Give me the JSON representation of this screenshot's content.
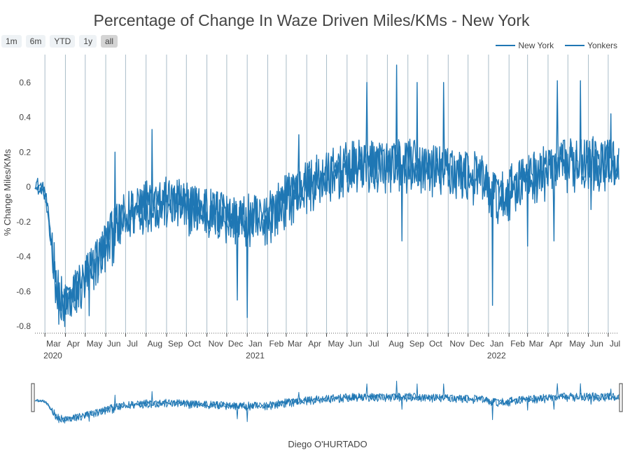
{
  "title": "Percentage of Change In Waze Driven Miles/KMs - New York",
  "range_buttons": [
    "1m",
    "6m",
    "YTD",
    "1y",
    "all"
  ],
  "active_range": "all",
  "footer": "Diego O'HURTADO",
  "chart_data": {
    "type": "line",
    "title": "Percentage of Change In Waze Driven Miles/KMs - New York",
    "xlabel": "",
    "ylabel": "% Change Miles/KMs",
    "x_range": [
      "2020-02-15",
      "2022-07-17"
    ],
    "ylim": [
      -0.84,
      0.76
    ],
    "y_ticks": [
      0.6,
      0.4,
      0.2,
      0,
      -0.2,
      -0.4,
      -0.6,
      -0.8
    ],
    "x_tick_labels": [
      {
        "date": "2020-03-01",
        "label": "Mar",
        "year": "2020"
      },
      {
        "date": "2020-04-01",
        "label": "Apr"
      },
      {
        "date": "2020-05-01",
        "label": "May"
      },
      {
        "date": "2020-06-01",
        "label": "Jun"
      },
      {
        "date": "2020-07-01",
        "label": "Jul"
      },
      {
        "date": "2020-08-01",
        "label": "Aug"
      },
      {
        "date": "2020-09-01",
        "label": "Sep"
      },
      {
        "date": "2020-10-01",
        "label": "Oct"
      },
      {
        "date": "2020-11-01",
        "label": "Nov"
      },
      {
        "date": "2020-12-01",
        "label": "Dec"
      },
      {
        "date": "2021-01-01",
        "label": "Jan",
        "year": "2021"
      },
      {
        "date": "2021-02-01",
        "label": "Feb"
      },
      {
        "date": "2021-03-01",
        "label": "Mar"
      },
      {
        "date": "2021-04-01",
        "label": "Apr"
      },
      {
        "date": "2021-05-01",
        "label": "May"
      },
      {
        "date": "2021-06-01",
        "label": "Jun"
      },
      {
        "date": "2021-07-01",
        "label": "Jul"
      },
      {
        "date": "2021-08-01",
        "label": "Aug"
      },
      {
        "date": "2021-09-01",
        "label": "Sep"
      },
      {
        "date": "2021-10-01",
        "label": "Oct"
      },
      {
        "date": "2021-11-01",
        "label": "Nov"
      },
      {
        "date": "2021-12-01",
        "label": "Dec"
      },
      {
        "date": "2022-01-01",
        "label": "Jan",
        "year": "2022"
      },
      {
        "date": "2022-02-01",
        "label": "Feb"
      },
      {
        "date": "2022-03-01",
        "label": "Mar"
      },
      {
        "date": "2022-04-01",
        "label": "Apr"
      },
      {
        "date": "2022-05-01",
        "label": "May"
      },
      {
        "date": "2022-06-01",
        "label": "Jun"
      },
      {
        "date": "2022-07-01",
        "label": "Jul"
      }
    ],
    "grid": true,
    "legend_position": "top-right",
    "rangeslider": true,
    "series": [
      {
        "name": "New York",
        "color": "#1f77b4",
        "points": [
          [
            "2020-02-15",
            0.03
          ],
          [
            "2020-03-01",
            -0.02
          ],
          [
            "2020-03-12",
            -0.32
          ],
          [
            "2020-03-20",
            -0.62
          ],
          [
            "2020-04-01",
            -0.7
          ],
          [
            "2020-04-15",
            -0.62
          ],
          [
            "2020-05-01",
            -0.55
          ],
          [
            "2020-05-20",
            -0.42
          ],
          [
            "2020-06-10",
            -0.3
          ],
          [
            "2020-07-01",
            -0.18
          ],
          [
            "2020-08-01",
            -0.1
          ],
          [
            "2020-09-01",
            -0.1
          ],
          [
            "2020-10-01",
            -0.12
          ],
          [
            "2020-11-01",
            -0.15
          ],
          [
            "2020-12-01",
            -0.18
          ],
          [
            "2021-01-01",
            -0.2
          ],
          [
            "2021-02-01",
            -0.18
          ],
          [
            "2021-03-01",
            -0.08
          ],
          [
            "2021-04-01",
            0.0
          ],
          [
            "2021-05-01",
            0.05
          ],
          [
            "2021-06-01",
            0.1
          ],
          [
            "2021-07-01",
            0.12
          ],
          [
            "2021-08-01",
            0.12
          ],
          [
            "2021-09-01",
            0.12
          ],
          [
            "2021-10-01",
            0.1
          ],
          [
            "2021-11-01",
            0.08
          ],
          [
            "2021-12-01",
            0.06
          ],
          [
            "2021-12-25",
            0.03
          ],
          [
            "2022-01-05",
            -0.05
          ],
          [
            "2022-01-20",
            -0.08
          ],
          [
            "2022-02-10",
            0.0
          ],
          [
            "2022-03-01",
            0.05
          ],
          [
            "2022-04-01",
            0.08
          ],
          [
            "2022-05-01",
            0.12
          ],
          [
            "2022-06-01",
            0.14
          ],
          [
            "2022-07-01",
            0.12
          ],
          [
            "2022-07-17",
            0.1
          ]
        ],
        "daily_amplitude": 0.16,
        "notable_lows": [
          [
            "2020-05-07",
            -0.74
          ],
          [
            "2020-12-17",
            -0.65
          ],
          [
            "2021-01-01",
            -0.75
          ],
          [
            "2021-08-23",
            -0.31
          ],
          [
            "2022-01-07",
            -0.68
          ],
          [
            "2022-03-01",
            -0.34
          ],
          [
            "2022-04-10",
            -0.31
          ],
          [
            "2022-06-05",
            -0.13
          ]
        ],
        "notable_highs": [
          [
            "2020-06-15",
            0.2
          ],
          [
            "2020-08-10",
            0.33
          ],
          [
            "2021-03-20",
            0.3
          ],
          [
            "2021-07-01",
            0.6
          ],
          [
            "2021-08-15",
            0.7
          ],
          [
            "2021-09-15",
            0.6
          ],
          [
            "2021-10-25",
            0.6
          ],
          [
            "2022-04-15",
            0.61
          ],
          [
            "2022-05-20",
            0.61
          ],
          [
            "2022-07-05",
            0.42
          ]
        ]
      },
      {
        "name": "Yonkers",
        "color": "#1f77b4",
        "points": [
          [
            "2020-02-15",
            0.0
          ],
          [
            "2020-03-01",
            -0.05
          ],
          [
            "2020-03-12",
            -0.38
          ],
          [
            "2020-03-20",
            -0.66
          ],
          [
            "2020-04-01",
            -0.68
          ],
          [
            "2020-04-15",
            -0.6
          ],
          [
            "2020-05-01",
            -0.52
          ],
          [
            "2020-05-20",
            -0.4
          ],
          [
            "2020-06-10",
            -0.26
          ],
          [
            "2020-07-01",
            -0.15
          ],
          [
            "2020-08-01",
            -0.08
          ],
          [
            "2020-09-01",
            -0.08
          ],
          [
            "2020-10-01",
            -0.1
          ],
          [
            "2020-11-01",
            -0.12
          ],
          [
            "2020-12-01",
            -0.16
          ],
          [
            "2021-01-01",
            -0.18
          ],
          [
            "2021-02-01",
            -0.15
          ],
          [
            "2021-03-01",
            -0.05
          ],
          [
            "2021-04-01",
            0.02
          ],
          [
            "2021-05-01",
            0.07
          ],
          [
            "2021-06-01",
            0.11
          ],
          [
            "2021-07-01",
            0.13
          ],
          [
            "2021-08-01",
            0.14
          ],
          [
            "2021-09-01",
            0.14
          ],
          [
            "2021-10-01",
            0.12
          ],
          [
            "2021-11-01",
            0.1
          ],
          [
            "2021-12-01",
            0.08
          ],
          [
            "2021-12-25",
            0.05
          ],
          [
            "2022-01-05",
            -0.03
          ],
          [
            "2022-01-20",
            -0.05
          ],
          [
            "2022-02-10",
            0.02
          ],
          [
            "2022-03-01",
            0.07
          ],
          [
            "2022-04-01",
            0.1
          ],
          [
            "2022-05-01",
            0.14
          ],
          [
            "2022-06-01",
            0.16
          ],
          [
            "2022-07-01",
            0.14
          ],
          [
            "2022-07-17",
            0.12
          ]
        ],
        "daily_amplitude": 0.12
      }
    ]
  }
}
